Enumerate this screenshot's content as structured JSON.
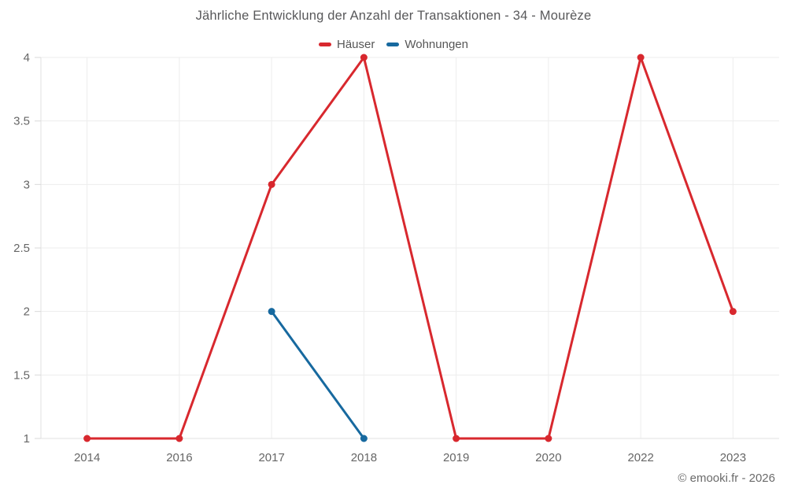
{
  "chart_data": {
    "type": "line",
    "title": "Jährliche Entwicklung der Anzahl der Transaktionen - 34 - Mourèze",
    "categories": [
      "2014",
      "2016",
      "2017",
      "2018",
      "2019",
      "2020",
      "2022",
      "2023"
    ],
    "series": [
      {
        "name": "Häuser",
        "color": "#d8282e",
        "values": [
          1,
          1,
          3,
          4,
          1,
          1,
          4,
          2
        ]
      },
      {
        "name": "Wohnungen",
        "color": "#17699f",
        "values": [
          null,
          null,
          2,
          1,
          null,
          null,
          null,
          null
        ]
      }
    ],
    "ylim": [
      1,
      4
    ],
    "yticks": [
      1,
      1.5,
      2,
      2.5,
      3,
      3.5,
      4
    ],
    "ytick_labels": [
      "1",
      "1.5",
      "2",
      "2.5",
      "3",
      "3.5",
      "4"
    ],
    "grid": true,
    "legend_position": "top",
    "xlabel": "",
    "ylabel": ""
  },
  "footer": {
    "credit": "© emooki.fr - 2026"
  },
  "colors": {
    "background": "#ffffff",
    "gridline": "#ededed",
    "axis_line": "#e2e2e2",
    "tick_mark": "#d9d9d9",
    "tick_label": "#666666",
    "title_text": "#58585a",
    "legend_text": "#565656"
  }
}
